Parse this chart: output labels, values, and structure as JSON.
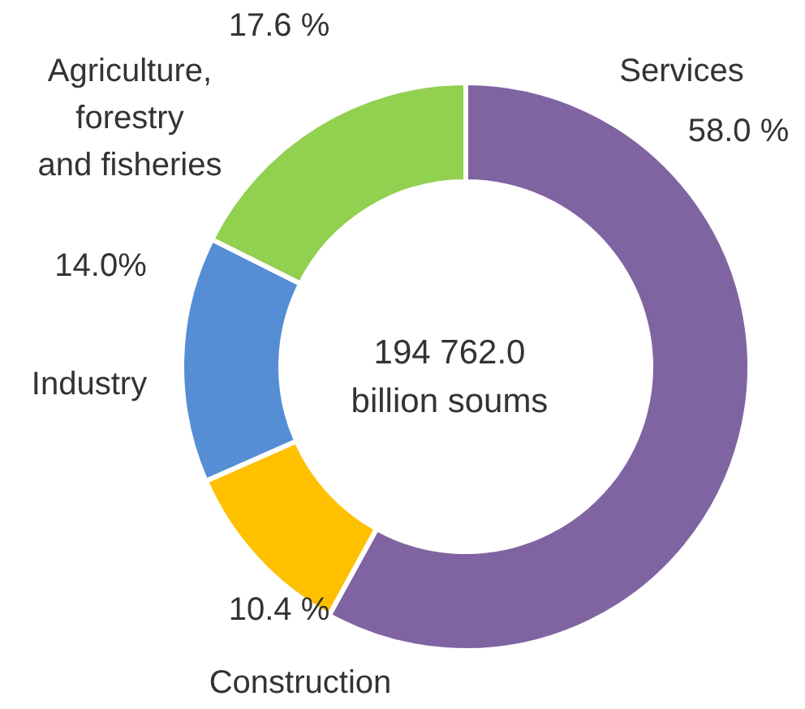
{
  "chart_data": {
    "type": "donut",
    "categories": [
      "Services",
      "Construction",
      "Industry",
      "Agriculture, forestry and fisheries"
    ],
    "values": [
      58.0,
      10.4,
      14.0,
      17.6
    ],
    "colors": [
      "#8064a2",
      "#ffc000",
      "#558ed5",
      "#92d050"
    ],
    "value_labels": [
      "58.0 %",
      "10.4 %",
      "14.0%",
      "17.6 %"
    ],
    "annotations": [
      "194 762.0",
      "billion soums"
    ]
  }
}
